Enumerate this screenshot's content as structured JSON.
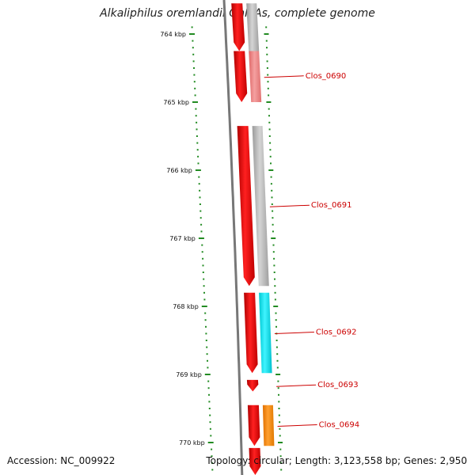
{
  "title": "Alkaliphilus oremlandii OhILAs, complete genome",
  "footer": {
    "accession": "Accession: NC_009922",
    "topology": "Topology: circular; Length: 3,123,558 bp; Genes: 2,950"
  },
  "colors": {
    "cds": "#ff0000",
    "feature_gray": "#bbbbbb",
    "feature_pink": "#f08080",
    "feature_cyan": "#00e5ee",
    "feature_orange": "#ff8c00",
    "backbone": "#777777",
    "tick": "#228b22",
    "label": "#cc0000"
  },
  "ticks": [
    {
      "label": "764 kbp",
      "kbp": 764
    },
    {
      "label": "765 kbp",
      "kbp": 765
    },
    {
      "label": "766 kbp",
      "kbp": 766
    },
    {
      "label": "767 kbp",
      "kbp": 767
    },
    {
      "label": "768 kbp",
      "kbp": 768
    },
    {
      "label": "769 kbp",
      "kbp": 769
    },
    {
      "label": "770 kbp",
      "kbp": 770
    }
  ],
  "genes": [
    {
      "name": "",
      "start": 763.55,
      "end": 764.25,
      "strand": "-",
      "feature": "gray"
    },
    {
      "name": "Clos_0690",
      "start": 764.25,
      "end": 765.0,
      "strand": "-",
      "feature": "pink"
    },
    {
      "name": "Clos_0691",
      "start": 765.35,
      "end": 767.7,
      "strand": "-",
      "feature": "gray"
    },
    {
      "name": "Clos_0692",
      "start": 767.8,
      "end": 768.98,
      "strand": "-",
      "feature": "cyan"
    },
    {
      "name": "Clos_0693",
      "start": 769.08,
      "end": 769.25,
      "strand": "-",
      "feature": "none"
    },
    {
      "name": "Clos_0694",
      "start": 769.45,
      "end": 770.05,
      "strand": "-",
      "feature": "orange"
    },
    {
      "name": "",
      "start": 770.08,
      "end": 770.5,
      "strand": "-",
      "feature": "none"
    }
  ]
}
